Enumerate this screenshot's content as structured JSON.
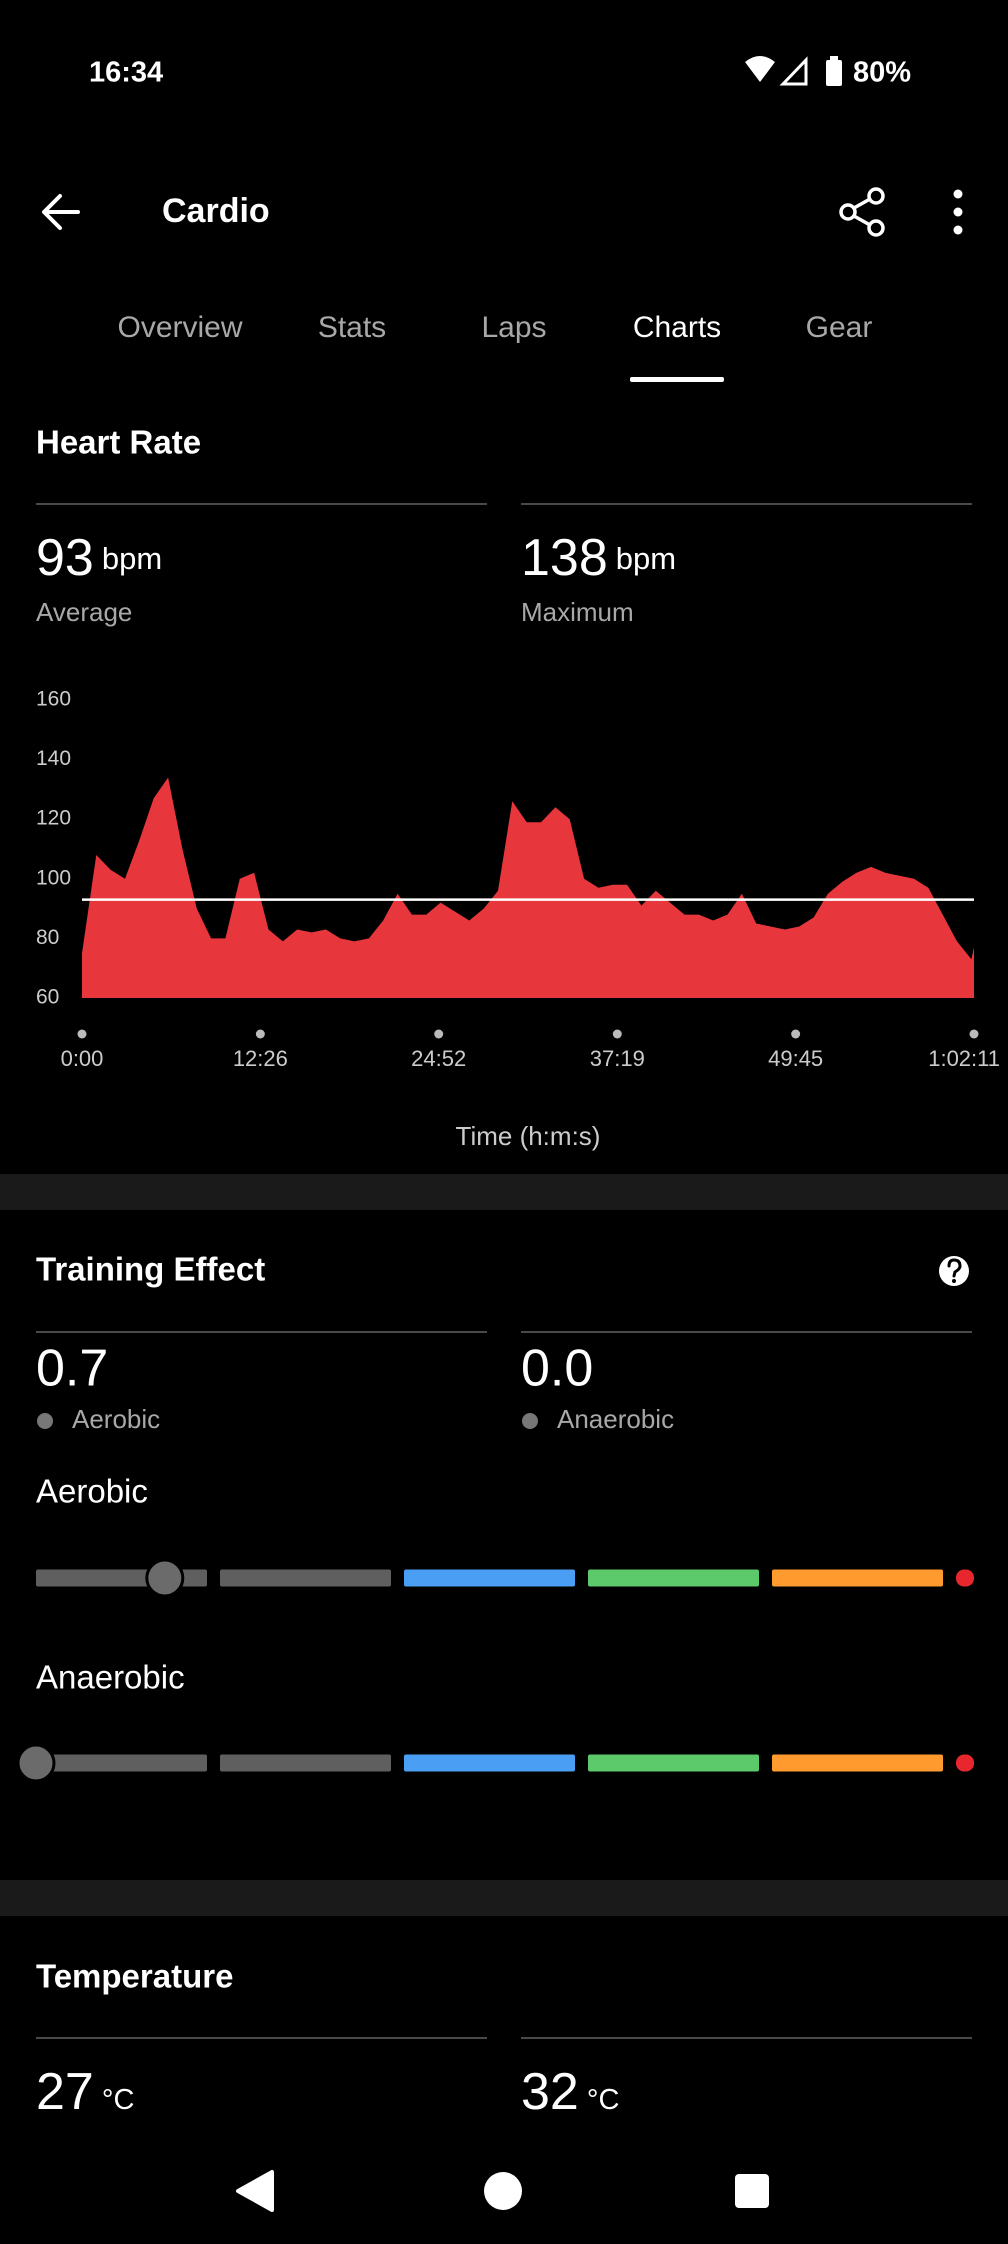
{
  "status_bar": {
    "time": "16:34",
    "battery": "80%"
  },
  "app_bar": {
    "title": "Cardio"
  },
  "tabs": {
    "items": [
      "Overview",
      "Stats",
      "Laps",
      "Charts",
      "Gear"
    ],
    "active": 3
  },
  "heart_rate": {
    "title": "Heart Rate",
    "average": {
      "value": 93,
      "unit": "bpm",
      "label": "Average"
    },
    "maximum": {
      "value": 138,
      "unit": "bpm",
      "label": "Maximum"
    },
    "chart_data": {
      "type": "area",
      "color": "#e8363d",
      "xlabel": "Time (h:m:s)",
      "x": [
        0,
        60,
        120,
        180,
        240,
        300,
        360,
        420,
        480,
        540,
        600,
        660,
        720,
        780,
        840,
        900,
        960,
        1020,
        1080,
        1140,
        1200,
        1260,
        1320,
        1380,
        1440,
        1500,
        1560,
        1620,
        1680,
        1740,
        1800,
        1860,
        1920,
        1980,
        2040,
        2100,
        2160,
        2220,
        2280,
        2340,
        2400,
        2460,
        2520,
        2580,
        2640,
        2700,
        2760,
        2820,
        2880,
        2940,
        3000,
        3060,
        3120,
        3180,
        3240,
        3300,
        3360,
        3420,
        3480,
        3540,
        3600,
        3660,
        3720,
        3731
      ],
      "values": [
        75,
        108,
        103,
        100,
        113,
        127,
        134,
        110,
        90,
        80,
        80,
        100,
        102,
        83,
        79,
        83,
        82,
        83,
        80,
        79,
        80,
        86,
        95,
        88,
        88,
        92,
        89,
        86,
        90,
        96,
        126,
        119,
        119,
        124,
        120,
        100,
        97,
        98,
        98,
        91,
        96,
        92,
        88,
        88,
        86,
        88,
        95,
        85,
        84,
        83,
        84,
        87,
        95,
        99,
        102,
        104,
        102,
        101,
        100,
        97,
        88,
        79,
        73,
        77
      ],
      "xlim": [
        0,
        3731
      ],
      "ylim": [
        60,
        160
      ],
      "yticks": [
        60,
        80,
        100,
        120,
        140,
        160
      ],
      "xticks": [
        {
          "value": 0,
          "label": "0:00"
        },
        {
          "value": 746,
          "label": "12:26"
        },
        {
          "value": 1492,
          "label": "24:52"
        },
        {
          "value": 2239,
          "label": "37:19"
        },
        {
          "value": 2985,
          "label": "49:45"
        },
        {
          "value": 3731,
          "label": "1:02:11"
        }
      ]
    }
  },
  "training_effect": {
    "title": "Training Effect",
    "aerobic": {
      "value": 0.7,
      "label": "Aerobic"
    },
    "anaerobic": {
      "value": 0,
      "value_label": "0.0",
      "label": "Anaerobic"
    },
    "bars": [
      {
        "title": "Aerobic"
      },
      {
        "title": "Anaerobic"
      }
    ],
    "scale_range": [
      0,
      5
    ],
    "segment_colors": [
      "#5f5f5f",
      "#5f5f5f",
      "#4a9ff5",
      "#5cc96a",
      "#ff9a2e",
      "#e8262e"
    ]
  },
  "temperature": {
    "title": "Temperature",
    "minimum": {
      "value": 27,
      "unit": "°C"
    },
    "maximum": {
      "value": 32,
      "unit": "°C"
    }
  }
}
